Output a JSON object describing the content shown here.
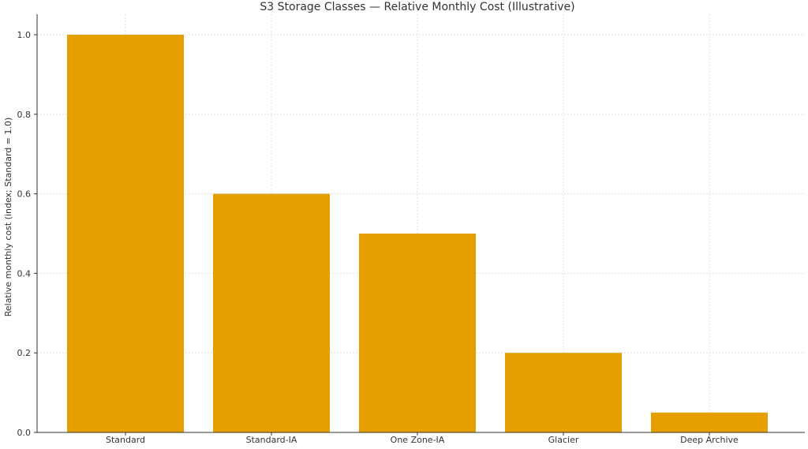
{
  "chart_data": {
    "type": "bar",
    "title": "S3 Storage Classes — Relative Monthly Cost (Illustrative)",
    "xlabel": "",
    "ylabel": "Relative monthly cost (index; Standard = 1.0)",
    "categories": [
      "Standard",
      "Standard-IA",
      "One Zone-IA",
      "Glacier",
      "Deep Archive"
    ],
    "values": [
      1.0,
      0.6,
      0.5,
      0.2,
      0.05
    ],
    "ylim": [
      0,
      1.0
    ],
    "yticks": [
      "0.0",
      "0.2",
      "0.4",
      "0.6",
      "0.8",
      "1.0"
    ],
    "grid": true,
    "bar_color": "#E5A000"
  }
}
